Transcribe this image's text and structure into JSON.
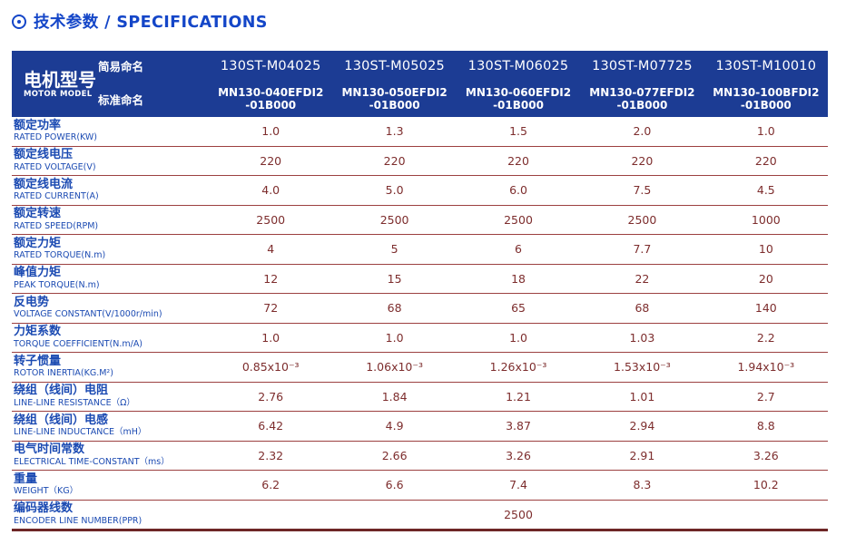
{
  "title": {
    "icon": "circle-dot-icon",
    "text": "技术参数 / SPECIFICATIONS"
  },
  "colors": {
    "header_bg": "#1c3c94",
    "title_blue": "#1446c8",
    "label_blue": "#1b4ab2",
    "value_maroon": "#7d2d2d",
    "separator_red": "#9c4040",
    "bottom_border": "#6e2626"
  },
  "table": {
    "model_header": {
      "title_zh": "电机型号",
      "title_en": "MOTOR MODEL",
      "row1_label": "简易命名",
      "row2_label": "标准命名"
    },
    "columns": [
      {
        "simple_name": "130ST-M04025",
        "standard_name_line1": "MN130-040EFDI2",
        "standard_name_line2": "-01B000"
      },
      {
        "simple_name": "130ST-M05025",
        "standard_name_line1": "MN130-050EFDI2",
        "standard_name_line2": "-01B000"
      },
      {
        "simple_name": "130ST-M06025",
        "standard_name_line1": "MN130-060EFDI2",
        "standard_name_line2": "-01B000"
      },
      {
        "simple_name": "130ST-M07725",
        "standard_name_line1": "MN130-077EFDI2",
        "standard_name_line2": "-01B000"
      },
      {
        "simple_name": "130ST-M10010",
        "standard_name_line1": "MN130-100BFDI2",
        "standard_name_line2": "-01B000"
      }
    ],
    "rows": [
      {
        "label_zh": "额定功率",
        "label_en": "RATED POWER(KW)",
        "values": [
          "1.0",
          "1.3",
          "1.5",
          "2.0",
          "1.0"
        ]
      },
      {
        "label_zh": "额定线电压",
        "label_en": "RATED VOLTAGE(V)",
        "values": [
          "220",
          "220",
          "220",
          "220",
          "220"
        ]
      },
      {
        "label_zh": "额定线电流",
        "label_en": "RATED CURRENT(A)",
        "values": [
          "4.0",
          "5.0",
          "6.0",
          "7.5",
          "4.5"
        ]
      },
      {
        "label_zh": "额定转速",
        "label_en": "RATED SPEED(RPM)",
        "values": [
          "2500",
          "2500",
          "2500",
          "2500",
          "1000"
        ]
      },
      {
        "label_zh": "额定力矩",
        "label_en": "RATED TORQUE(N.m)",
        "values": [
          "4",
          "5",
          "6",
          "7.7",
          "10"
        ]
      },
      {
        "label_zh": "峰值力矩",
        "label_en": "PEAK TORQUE(N.m)",
        "values": [
          "12",
          "15",
          "18",
          "22",
          "20"
        ]
      },
      {
        "label_zh": "反电势",
        "label_en": "VOLTAGE CONSTANT(V/1000r/min)",
        "values": [
          "72",
          "68",
          "65",
          "68",
          "140"
        ]
      },
      {
        "label_zh": "力矩系数",
        "label_en": "TORQUE COEFFICIENT(N.m/A)",
        "values": [
          "1.0",
          "1.0",
          "1.0",
          "1.03",
          "2.2"
        ]
      },
      {
        "label_zh": "转子惯量",
        "label_en": "ROTOR INERTIA(KG.M²)",
        "values": [
          "0.85x10⁻³",
          "1.06x10⁻³",
          "1.26x10⁻³",
          "1.53x10⁻³",
          "1.94x10⁻³"
        ]
      },
      {
        "label_zh": "绕组（线间）电阻",
        "label_en": "LINE-LINE RESISTANCE（Ω）",
        "values": [
          "2.76",
          "1.84",
          "1.21",
          "1.01",
          "2.7"
        ]
      },
      {
        "label_zh": "绕组（线间）电感",
        "label_en": "LINE-LINE INDUCTANCE（mH）",
        "values": [
          "6.42",
          "4.9",
          "3.87",
          "2.94",
          "8.8"
        ]
      },
      {
        "label_zh": "电气时间常数",
        "label_en": "ELECTRICAL TIME-CONSTANT（ms）",
        "values": [
          "2.32",
          "2.66",
          "3.26",
          "2.91",
          "3.26"
        ]
      },
      {
        "label_zh": "重量",
        "label_en": "WEIGHT（KG）",
        "values": [
          "6.2",
          "6.6",
          "7.4",
          "8.3",
          "10.2"
        ]
      },
      {
        "label_zh": "编码器线数",
        "label_en": "ENCODER LINE NUMBER(PPR)",
        "values": [
          "2500"
        ],
        "span": true
      }
    ]
  }
}
